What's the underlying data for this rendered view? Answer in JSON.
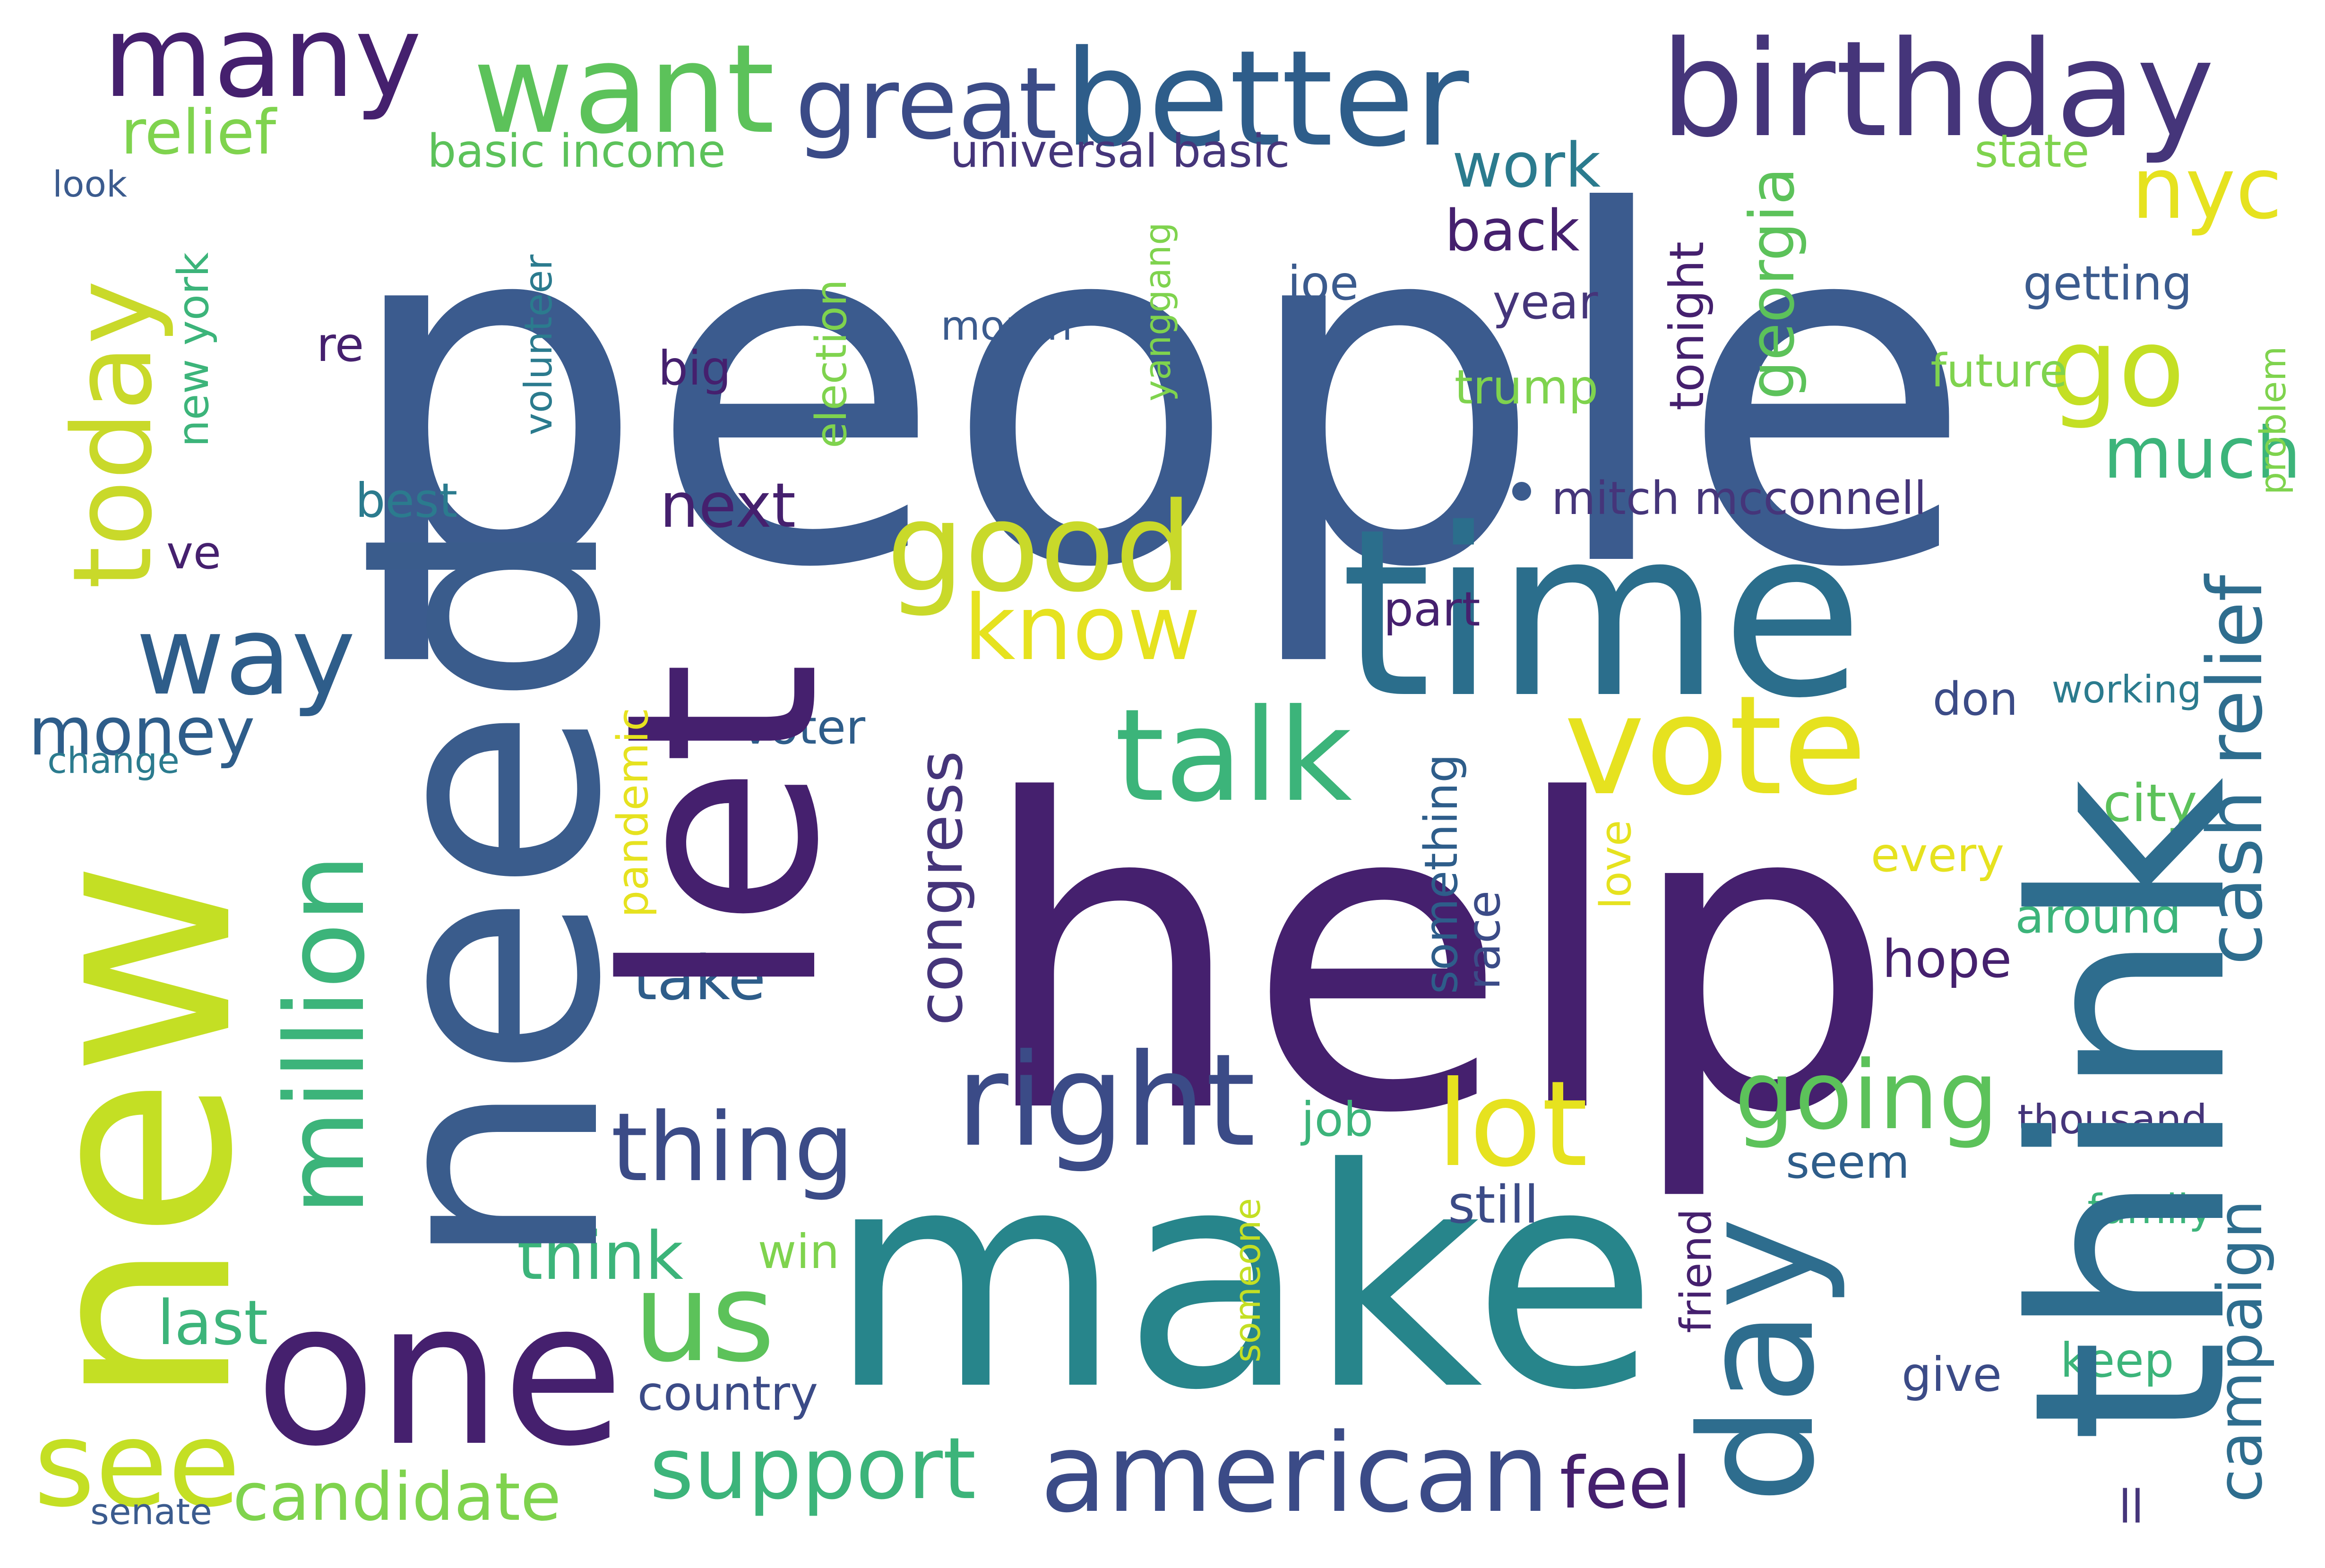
{
  "words": [
    {
      "text": "people",
      "color": "#3b5b8e"
    },
    {
      "text": "help",
      "color": "#45206e"
    },
    {
      "text": "make",
      "color": "#27858b"
    },
    {
      "text": "need",
      "color": "#3a5c8c"
    },
    {
      "text": "new",
      "color": "#c4df24"
    },
    {
      "text": "think",
      "color": "#2e6d8e"
    },
    {
      "text": "let",
      "color": "#45206e"
    },
    {
      "text": "time",
      "color": "#2b6e8c"
    },
    {
      "text": "one",
      "color": "#45206e"
    },
    {
      "text": "day",
      "color": "#2e6d8e"
    },
    {
      "text": "birthday",
      "color": "#45357a"
    },
    {
      "text": "better",
      "color": "#2e5d8a"
    },
    {
      "text": "want",
      "color": "#5cc25a"
    },
    {
      "text": "many",
      "color": "#45206e"
    },
    {
      "text": "great",
      "color": "#3b4b87"
    },
    {
      "text": "good",
      "color": "#c9d92a"
    },
    {
      "text": "talk",
      "color": "#3cb47a"
    },
    {
      "text": "vote",
      "color": "#e6e21f"
    },
    {
      "text": "right",
      "color": "#3b4b87"
    },
    {
      "text": "american",
      "color": "#3b4b87"
    },
    {
      "text": "us",
      "color": "#5cc25a"
    },
    {
      "text": "million",
      "color": "#3cb47a"
    },
    {
      "text": "today",
      "color": "#c9d92a"
    },
    {
      "text": "see",
      "color": "#c4df24"
    },
    {
      "text": "way",
      "color": "#2e5d8a"
    },
    {
      "text": "lot",
      "color": "#e6e21f"
    },
    {
      "text": "go",
      "color": "#c4df24"
    },
    {
      "text": "support",
      "color": "#3cb47a"
    },
    {
      "text": "going",
      "color": "#5cc25a"
    },
    {
      "text": "cash relief",
      "color": "#2e6d8e"
    },
    {
      "text": "thing",
      "color": "#3b4b87"
    },
    {
      "text": "know",
      "color": "#e6e21f"
    },
    {
      "text": "nyc",
      "color": "#e6e21f"
    },
    {
      "text": "candidate",
      "color": "#7fd34e"
    },
    {
      "text": "campaign",
      "color": "#2e6d8e"
    },
    {
      "text": "congress",
      "color": "#45357a"
    },
    {
      "text": "feel",
      "color": "#45206e"
    },
    {
      "text": "work",
      "color": "#2b7b8e"
    },
    {
      "text": "much",
      "color": "#3cb47a"
    },
    {
      "text": "georgia",
      "color": "#5cc25a"
    },
    {
      "text": "money",
      "color": "#2e5d8a"
    },
    {
      "text": "relief",
      "color": "#7fd34e"
    },
    {
      "text": "think",
      "color": "#3cb47a"
    },
    {
      "text": "take",
      "color": "#2e5d8a"
    },
    {
      "text": "back",
      "color": "#45206e"
    },
    {
      "text": "next",
      "color": "#45206e"
    },
    {
      "text": "last",
      "color": "#3cb47a"
    },
    {
      "text": "country",
      "color": "#3b4b87"
    },
    {
      "text": "basic income",
      "color": "#5cc25a"
    },
    {
      "text": "universal basic",
      "color": "#45357a"
    },
    {
      "text": "mitch mcconnell",
      "color": "#45357a"
    },
    {
      "text": "getting",
      "color": "#3b5b8e"
    },
    {
      "text": "state",
      "color": "#7fd34e"
    },
    {
      "text": "future",
      "color": "#7fd34e"
    },
    {
      "text": "trump",
      "color": "#7fd34e"
    },
    {
      "text": "year",
      "color": "#45357a"
    },
    {
      "text": "joe",
      "color": "#3b5b8e"
    },
    {
      "text": "big",
      "color": "#45206e"
    },
    {
      "text": "month",
      "color": "#3b5b8e"
    },
    {
      "text": "re",
      "color": "#45206e"
    },
    {
      "text": "best",
      "color": "#2b7b8e"
    },
    {
      "text": "ve",
      "color": "#45206e"
    },
    {
      "text": "part",
      "color": "#45206e"
    },
    {
      "text": "still",
      "color": "#3b4b87"
    },
    {
      "text": "voter",
      "color": "#2e5d8a"
    },
    {
      "text": "job",
      "color": "#3cb47a"
    },
    {
      "text": "win",
      "color": "#7fd34e"
    },
    {
      "text": "seem",
      "color": "#2e5d8a"
    },
    {
      "text": "hope",
      "color": "#45206e"
    },
    {
      "text": "around",
      "color": "#3cb47a"
    },
    {
      "text": "city",
      "color": "#5cc25a"
    },
    {
      "text": "every",
      "color": "#e6e21f"
    },
    {
      "text": "don",
      "color": "#3b4b87"
    },
    {
      "text": "working",
      "color": "#2b7b8e"
    },
    {
      "text": "thousand",
      "color": "#45357a"
    },
    {
      "text": "family",
      "color": "#3cb47a"
    },
    {
      "text": "keep",
      "color": "#3cb47a"
    },
    {
      "text": "give",
      "color": "#3b4b87"
    },
    {
      "text": "ll",
      "color": "#45357a"
    },
    {
      "text": "look",
      "color": "#3b5b8e"
    },
    {
      "text": "change",
      "color": "#2b7b8e"
    },
    {
      "text": "senate",
      "color": "#3b5b8e"
    },
    {
      "text": "new york",
      "color": "#3cb47a"
    },
    {
      "text": "volunteer",
      "color": "#2b7b8e"
    },
    {
      "text": "election",
      "color": "#7fd34e"
    },
    {
      "text": "yanggang",
      "color": "#7fd34e"
    },
    {
      "text": "tonight",
      "color": "#45206e"
    },
    {
      "text": "problem",
      "color": "#7fd34e"
    },
    {
      "text": "pandemic",
      "color": "#e6e21f"
    },
    {
      "text": "something",
      "color": "#2e5d8a"
    },
    {
      "text": "race",
      "color": "#3b4b87"
    },
    {
      "text": "love",
      "color": "#e6e21f"
    },
    {
      "text": "friend",
      "color": "#45206e"
    },
    {
      "text": "someone",
      "color": "#c4df24"
    }
  ]
}
